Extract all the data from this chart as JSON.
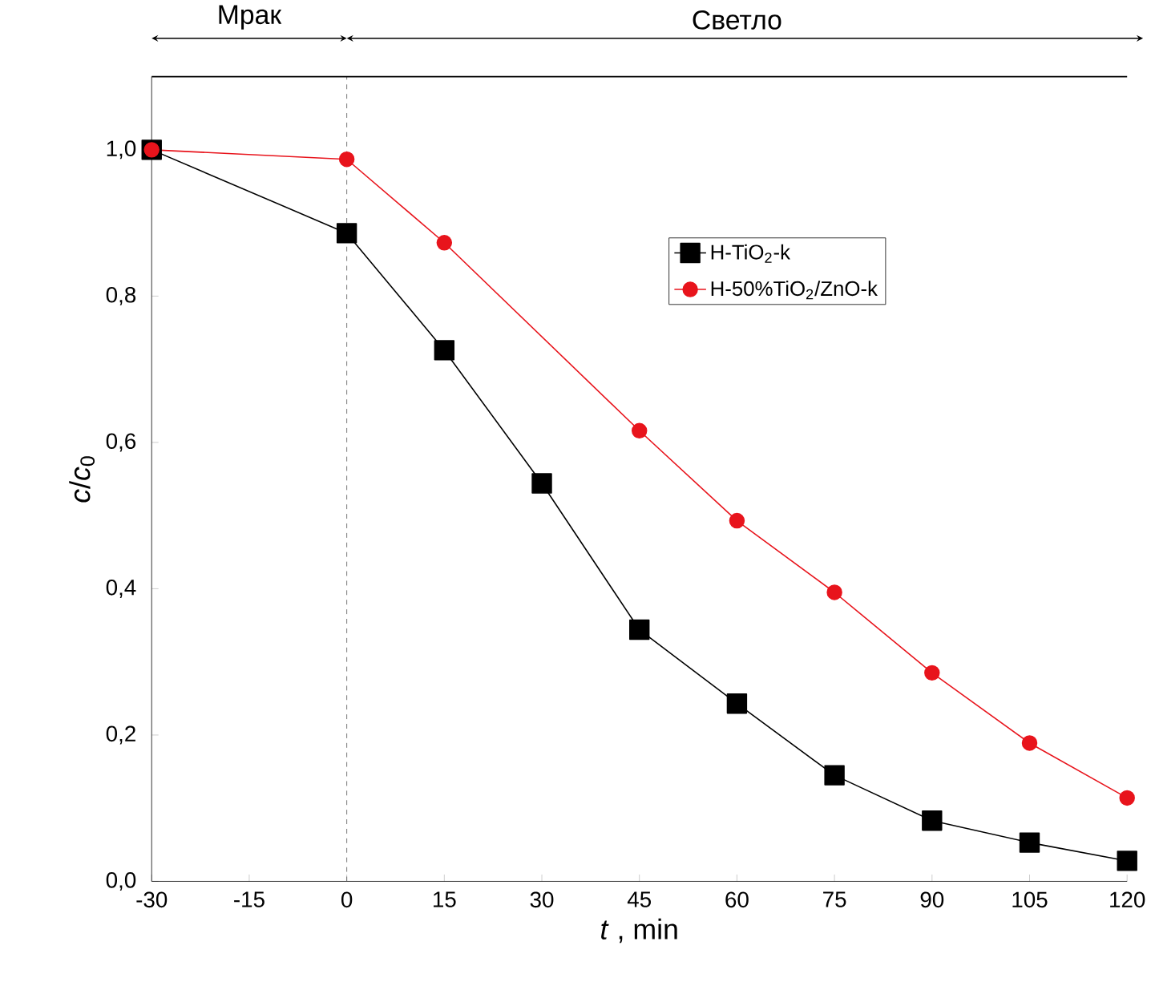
{
  "chart_data": {
    "type": "line",
    "xlabel": "*t* , min",
    "ylabel": "*c*/*c*$_{0}$",
    "annotations": [
      "Мрак",
      "Светло"
    ],
    "xlim": [
      -30,
      120
    ],
    "xticks": [
      -30,
      -15,
      0,
      15,
      30,
      45,
      60,
      75,
      90,
      105,
      120
    ],
    "ylim": [
      0,
      1.1
    ],
    "yticks": [
      {
        "value": 0,
        "label": "0,0"
      },
      {
        "value": 0.2,
        "label": "0,2"
      },
      {
        "value": 0.4,
        "label": "0,4"
      },
      {
        "value": 0.6,
        "label": "0,6"
      },
      {
        "value": 0.8,
        "label": "0,8"
      },
      {
        "value": 1.0,
        "label": "1,0"
      }
    ],
    "ref_lines": [
      {
        "axis": "x",
        "value": 0,
        "color": "#555555",
        "line_style": "dashed"
      }
    ],
    "legend": "right",
    "grid": false,
    "series": [
      {
        "name": "H-TiO$_{2}$-k",
        "color": "#000000",
        "marker": "square",
        "x": [
          -30,
          0,
          15,
          30,
          45,
          60,
          75,
          90,
          105,
          120
        ],
        "values": [
          1.0,
          0.886,
          0.726,
          0.544,
          0.344,
          0.243,
          0.145,
          0.083,
          0.053,
          0.028
        ]
      },
      {
        "name": "H-50%TiO$_{2}$/ZnO-k",
        "color": "#e8141c",
        "marker": "circle",
        "x": [
          -30,
          0,
          15,
          45,
          60,
          75,
          90,
          105,
          120
        ],
        "values": [
          1.0,
          0.987,
          0.873,
          0.616,
          0.493,
          0.395,
          0.285,
          0.189,
          0.114
        ]
      }
    ]
  }
}
